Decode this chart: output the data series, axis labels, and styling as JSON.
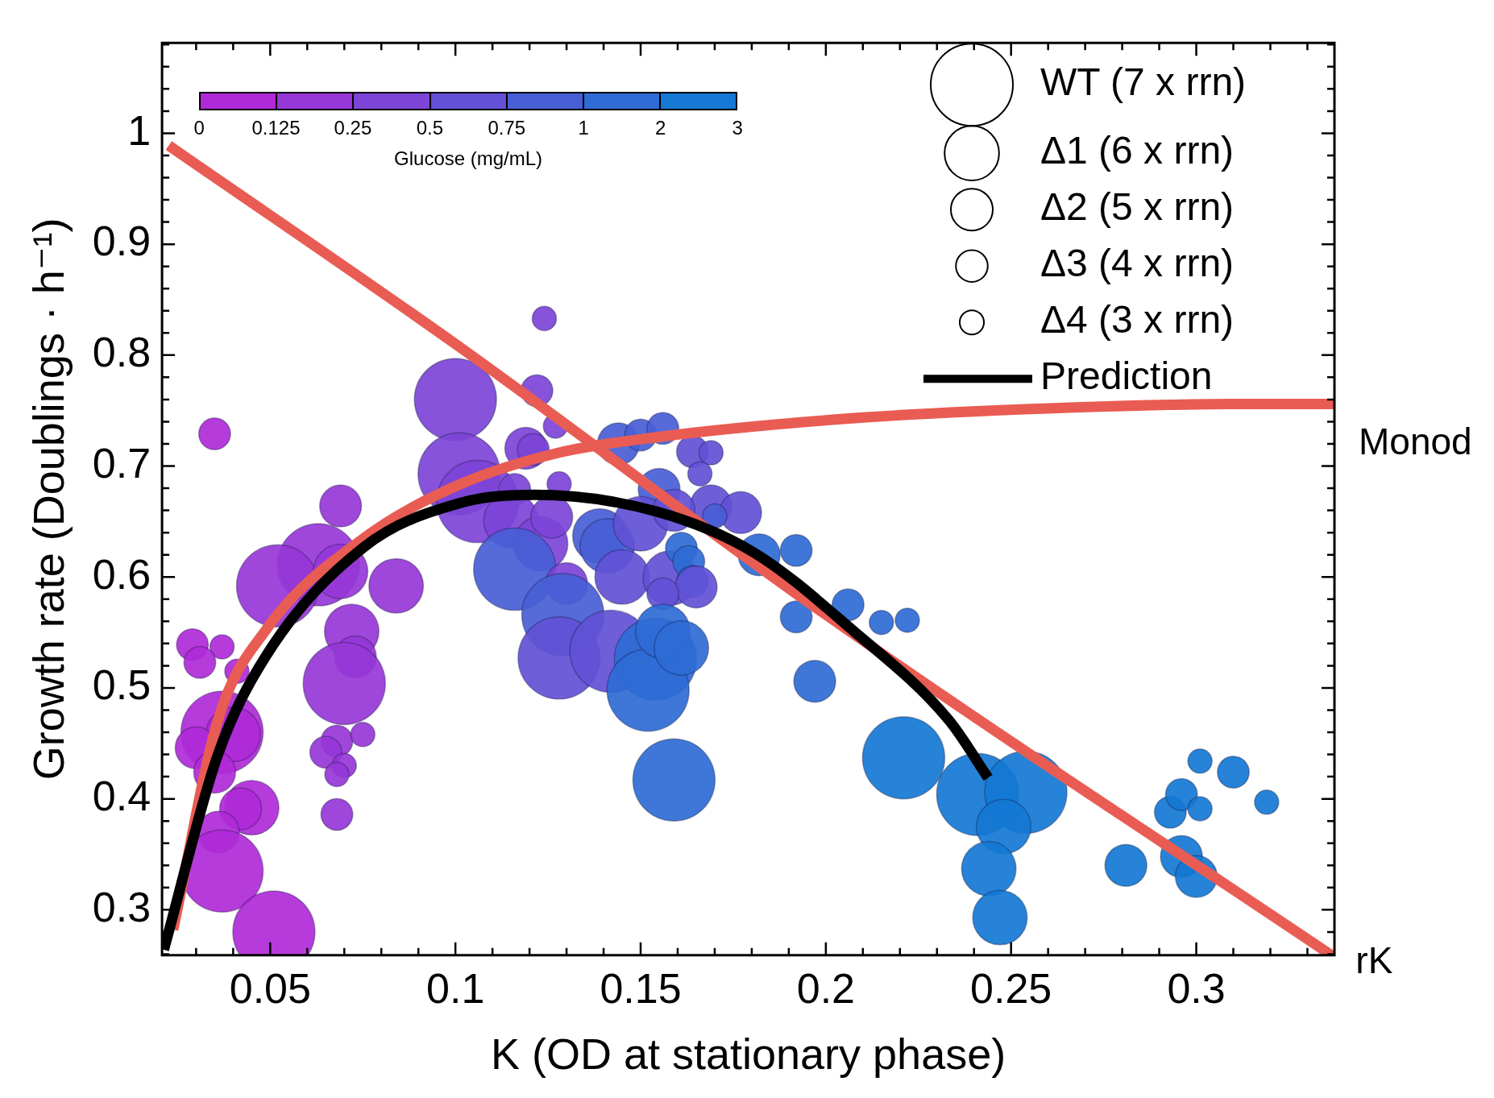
{
  "chart_data": {
    "type": "bubble",
    "xlabel": "K (OD at stationary phase)",
    "ylabel": "Growth rate (Doublings · h⁻¹)",
    "xlim": [
      0.0208,
      0.3373
    ],
    "ylim": [
      0.259,
      1.0815
    ],
    "xticks": [
      {
        "value": 0.03,
        "label": null
      },
      {
        "value": 0.04,
        "label": null
      },
      0.05,
      {
        "value": 0.06,
        "label": null
      },
      {
        "value": 0.07,
        "label": null
      },
      {
        "value": 0.08,
        "label": null
      },
      {
        "value": 0.09,
        "label": null
      },
      0.1,
      {
        "value": 0.11,
        "label": null
      },
      {
        "value": 0.12,
        "label": null
      },
      {
        "value": 0.13,
        "label": null
      },
      {
        "value": 0.14,
        "label": null
      },
      0.15,
      {
        "value": 0.16,
        "label": null
      },
      {
        "value": 0.17,
        "label": null
      },
      {
        "value": 0.18,
        "label": null
      },
      {
        "value": 0.19,
        "label": null
      },
      0.2,
      {
        "value": 0.21,
        "label": null
      },
      {
        "value": 0.22,
        "label": null
      },
      {
        "value": 0.23,
        "label": null
      },
      {
        "value": 0.24,
        "label": null
      },
      0.25,
      {
        "value": 0.26,
        "label": null
      },
      {
        "value": 0.27,
        "label": null
      },
      {
        "value": 0.28,
        "label": null
      },
      {
        "value": 0.29,
        "label": null
      },
      0.3,
      {
        "value": 0.31,
        "label": null
      },
      {
        "value": 0.32,
        "label": null
      },
      {
        "value": 0.33,
        "label": null
      }
    ],
    "yticks": [
      {
        "value": 0.26,
        "label": null
      },
      {
        "value": 0.28,
        "label": null
      },
      0.3,
      {
        "value": 0.32,
        "label": null
      },
      {
        "value": 0.34,
        "label": null
      },
      {
        "value": 0.36,
        "label": null
      },
      {
        "value": 0.38,
        "label": null
      },
      0.4,
      {
        "value": 0.42,
        "label": null
      },
      {
        "value": 0.44,
        "label": null
      },
      {
        "value": 0.46,
        "label": null
      },
      {
        "value": 0.48,
        "label": null
      },
      0.5,
      {
        "value": 0.52,
        "label": null
      },
      {
        "value": 0.54,
        "label": null
      },
      {
        "value": 0.56,
        "label": null
      },
      {
        "value": 0.58,
        "label": null
      },
      0.6,
      {
        "value": 0.62,
        "label": null
      },
      {
        "value": 0.64,
        "label": null
      },
      {
        "value": 0.66,
        "label": null
      },
      {
        "value": 0.68,
        "label": null
      },
      0.7,
      {
        "value": 0.72,
        "label": null
      },
      {
        "value": 0.74,
        "label": null
      },
      {
        "value": 0.76,
        "label": null
      },
      {
        "value": 0.78,
        "label": null
      },
      0.8,
      {
        "value": 0.82,
        "label": null
      },
      {
        "value": 0.84,
        "label": null
      },
      {
        "value": 0.86,
        "label": null
      },
      {
        "value": 0.88,
        "label": null
      },
      0.9,
      {
        "value": 0.92,
        "label": null
      },
      {
        "value": 0.94,
        "label": null
      },
      {
        "value": 0.96,
        "label": null
      },
      {
        "value": 0.98,
        "label": null
      },
      1,
      {
        "value": 1.02,
        "label": null
      },
      {
        "value": 1.04,
        "label": null
      },
      {
        "value": 1.06,
        "label": null
      },
      {
        "value": 1.08,
        "label": null
      }
    ],
    "grid": false,
    "legend": "top right",
    "size_legend": [
      {
        "value": 1,
        "label": "WT (7 x rrn)"
      },
      {
        "value": 0.44,
        "label": "Δ1 (6 x rrn)"
      },
      {
        "value": 0.26,
        "label": "Δ2 (5 x rrn)"
      },
      {
        "value": 0.15,
        "label": "Δ3 (4 x rrn)"
      },
      {
        "value": 0.087,
        "label": "Δ4 (3 x rrn)"
      }
    ],
    "annotations": [
      {
        "text": "Monod",
        "x": 0.3373,
        "y": 0.756
      },
      {
        "text": "rK",
        "x": 0.3365,
        "y": 0.259
      },
      "0",
      "0.125",
      "0.25",
      "0.5",
      "0.75",
      "1",
      "2",
      "3",
      "Glucose (mg/mL)"
    ],
    "series": [
      {
        "type": "bubble",
        "x": [
          0.124,
          0.1,
          0.122,
          0.127,
          0.035,
          0.101,
          0.106,
          0.119,
          0.121,
          0.128,
          0.069,
          0.063,
          0.052,
          0.069,
          0.084,
          0.072,
          0.073,
          0.07,
          0.029,
          0.037,
          0.031,
          0.041,
          0.037,
          0.04,
          0.03,
          0.035,
          0.045,
          0.042,
          0.036,
          0.037,
          0.051,
          0.068,
          0.075,
          0.065,
          0.07,
          0.068,
          0.068,
          0.144,
          0.15,
          0.156,
          0.164,
          0.169,
          0.166,
          0.155,
          0.116,
          0.169,
          0.177,
          0.115,
          0.123,
          0.126,
          0.139,
          0.141,
          0.15,
          0.159,
          0.17,
          0.116,
          0.13,
          0.145,
          0.129,
          0.158,
          0.161,
          0.163,
          0.164,
          0.165,
          0.156,
          0.128,
          0.142,
          0.154,
          0.152,
          0.156,
          0.161,
          0.159,
          0.182,
          0.192,
          0.192,
          0.206,
          0.215,
          0.222,
          0.197,
          0.221,
          0.241,
          0.254,
          0.248,
          0.244,
          0.247,
          0.281,
          0.296,
          0.3,
          0.293,
          0.296,
          0.301,
          0.301,
          0.31,
          0.319
        ],
        "values": [
          0.833,
          0.76,
          0.768,
          0.736,
          0.729,
          0.693,
          0.668,
          0.716,
          0.715,
          0.684,
          0.664,
          0.611,
          0.592,
          0.605,
          0.592,
          0.551,
          0.528,
          0.504,
          0.539,
          0.537,
          0.523,
          0.515,
          0.46,
          0.458,
          0.446,
          0.424,
          0.392,
          0.391,
          0.37,
          0.335,
          0.28,
          0.452,
          0.458,
          0.442,
          0.43,
          0.422,
          0.386,
          0.72,
          0.728,
          0.734,
          0.713,
          0.712,
          0.693,
          0.679,
          0.679,
          0.664,
          0.658,
          0.651,
          0.63,
          0.654,
          0.637,
          0.628,
          0.648,
          0.66,
          0.655,
          0.607,
          0.594,
          0.6,
          0.566,
          0.599,
          0.626,
          0.614,
          0.596,
          0.591,
          0.585,
          0.527,
          0.533,
          0.526,
          0.498,
          0.551,
          0.536,
          0.417,
          0.62,
          0.624,
          0.564,
          0.575,
          0.559,
          0.561,
          0.506,
          0.437,
          0.404,
          0.406,
          0.375,
          0.337,
          0.293,
          0.34,
          0.348,
          0.33,
          0.388,
          0.404,
          0.391,
          0.434,
          0.424,
          0.397
        ],
        "sizes": [
          0.087,
          1,
          0.15,
          0.087,
          0.15,
          1,
          1,
          0.26,
          0.15,
          0.087,
          0.26,
          1,
          1,
          0.44,
          0.44,
          0.44,
          0.26,
          1,
          0.15,
          0.087,
          0.15,
          0.087,
          1,
          0.44,
          0.26,
          0.26,
          0.44,
          0.26,
          0.26,
          1,
          1,
          0.15,
          0.087,
          0.15,
          0.087,
          0.087,
          0.15,
          0.26,
          0.15,
          0.15,
          0.15,
          0.087,
          0.087,
          0.26,
          0.15,
          0.26,
          0.26,
          0.44,
          0.44,
          0.26,
          0.44,
          0.44,
          0.44,
          0.26,
          0.087,
          1,
          0.26,
          0.44,
          1,
          0.44,
          0.15,
          0.15,
          0.15,
          0.26,
          0.15,
          1,
          1,
          1,
          1,
          0.44,
          0.44,
          1,
          0.26,
          0.15,
          0.15,
          0.15,
          0.087,
          0.087,
          0.26,
          1,
          1,
          1,
          0.44,
          0.44,
          0.44,
          0.26,
          0.26,
          0.26,
          0.15,
          0.15,
          0.087,
          0.087,
          0.15,
          0.087
        ],
        "colors": [
          "#7c44d7",
          "#7c44d7",
          "#7c44d7",
          "#7c44d7",
          "#b02ad8",
          "#7c44d7",
          "#7c44d7",
          "#7c44d7",
          "#7c44d7",
          "#7c44d7",
          "#9637d7",
          "#9637d7",
          "#9637d7",
          "#9637d7",
          "#9637d7",
          "#9637d7",
          "#9637d7",
          "#9637d7",
          "#b02ad8",
          "#b02ad8",
          "#b02ad8",
          "#b02ad8",
          "#b02ad8",
          "#b02ad8",
          "#b02ad8",
          "#b02ad8",
          "#b02ad8",
          "#b02ad8",
          "#b02ad8",
          "#b02ad8",
          "#b02ad8",
          "#9637d7",
          "#9637d7",
          "#9637d7",
          "#9637d7",
          "#9637d7",
          "#9637d7",
          "#485ed5",
          "#485ed5",
          "#485ed5",
          "#6251d6",
          "#6251d6",
          "#6251d6",
          "#485ed5",
          "#7c44d7",
          "#6251d6",
          "#6251d6",
          "#7c44d7",
          "#7c44d7",
          "#7c44d7",
          "#485ed5",
          "#485ed5",
          "#6251d6",
          "#6251d6",
          "#485ed5",
          "#485ed5",
          "#7c44d7",
          "#6251d6",
          "#485ed5",
          "#6251d6",
          "#2e6bd5",
          "#2e6bd5",
          "#2e6bd5",
          "#6251d6",
          "#6251d6",
          "#6251d6",
          "#6251d6",
          "#2e6bd5",
          "#2e6bd5",
          "#2e6bd5",
          "#2e6bd5",
          "#2e6bd5",
          "#2e6bd5",
          "#2e6bd5",
          "#2e6bd5",
          "#2e6bd5",
          "#2e6bd5",
          "#2e6bd5",
          "#2e6bd5",
          "#1478d4",
          "#1478d4",
          "#1478d4",
          "#1478d4",
          "#1478d4",
          "#1478d4",
          "#1478d4",
          "#1478d4",
          "#1478d4",
          "#1478d4",
          "#1478d4",
          "#1478d4",
          "#1478d4",
          "#1478d4",
          "#1478d4"
        ]
      },
      {
        "type": "line",
        "name": "Prediction",
        "color": "#000000",
        "x": [
          0.0213,
          0.0358,
          0.0489,
          0.0753,
          0.1016,
          0.1213,
          0.1543,
          0.1806,
          0.2069,
          0.2332,
          0.2438
        ],
        "values": [
          0.264,
          0.439,
          0.529,
          0.627,
          0.667,
          0.674,
          0.659,
          0.622,
          0.553,
          0.471,
          0.419
        ]
      },
      {
        "type": "line",
        "color": "#e95c53",
        "x": [
          0.0238,
          0.0359,
          0.049,
          0.0753,
          0.1016,
          0.1279,
          0.1543,
          0.207,
          0.26,
          0.3124,
          0.3373
        ],
        "values": [
          0.282,
          0.471,
          0.553,
          0.635,
          0.684,
          0.712,
          0.726,
          0.743,
          0.752,
          0.756,
          0.756
        ]
      },
      {
        "type": "line",
        "color": "#e95c53",
        "x": [
          0.0226,
          0.1,
          0.2,
          0.3365
        ],
        "values": [
          0.989,
          0.81,
          0.566,
          0.259
        ]
      }
    ]
  }
}
